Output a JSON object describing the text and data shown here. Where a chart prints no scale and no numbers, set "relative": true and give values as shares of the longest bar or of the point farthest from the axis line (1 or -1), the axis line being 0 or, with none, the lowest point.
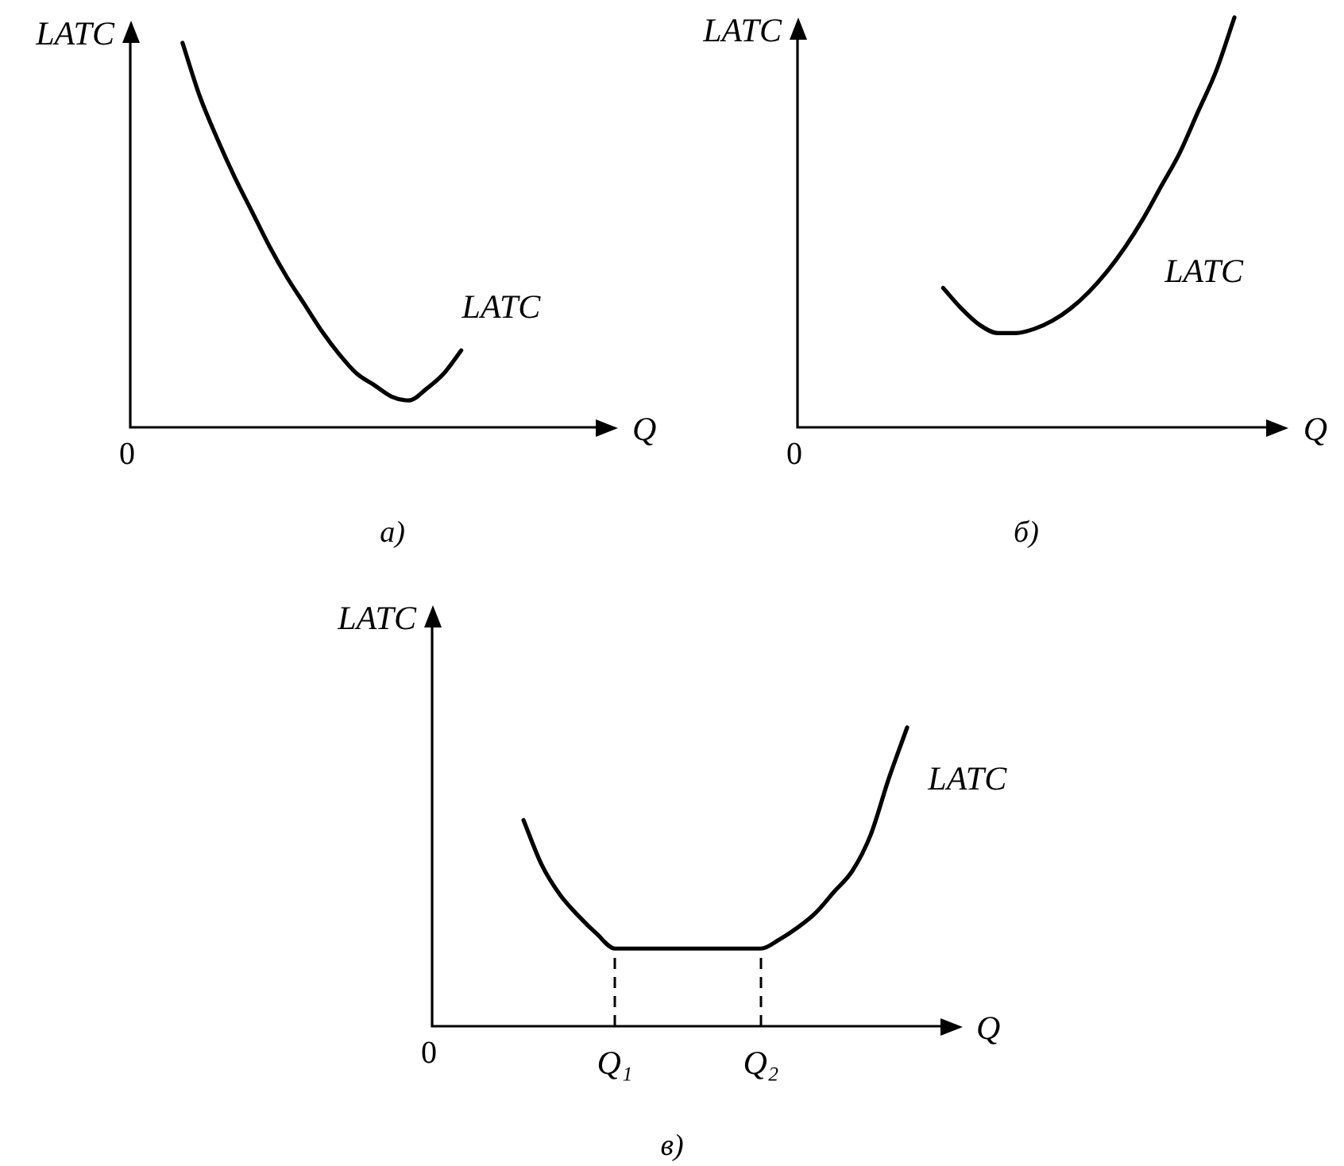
{
  "chart_data": [
    {
      "type": "line",
      "title": "а)",
      "xlabel": "Q",
      "ylabel": "LATC",
      "relative": true,
      "marker": "none",
      "categories": [
        null,
        null,
        null,
        null,
        null,
        null,
        null,
        null,
        null,
        null,
        null,
        null,
        null,
        null,
        null,
        null,
        null,
        null,
        null,
        null,
        null,
        null,
        null,
        null,
        null,
        null,
        null,
        null,
        null
      ],
      "series": [
        {
          "name": "LATC",
          "color": "#000000",
          "values": [
            null,
            null,
            null,
            1.0,
            0.86,
            0.75,
            0.65,
            0.56,
            0.47,
            0.39,
            0.32,
            0.25,
            0.19,
            0.14,
            0.11,
            0.08,
            0.07,
            0.1,
            0.14,
            0.2,
            null,
            null,
            null,
            null,
            null,
            null,
            null,
            null,
            null
          ]
        }
      ],
      "annotations": [
        "0"
      ]
    },
    {
      "type": "line",
      "title": "б)",
      "xlabel": "Q",
      "ylabel": "LATC",
      "relative": true,
      "marker": "none",
      "categories": [
        null,
        null,
        null,
        null,
        null,
        null,
        null,
        null,
        null,
        null,
        null,
        null,
        null,
        null,
        null,
        null,
        null,
        null,
        null,
        null,
        null,
        null,
        null,
        null,
        null,
        null,
        null,
        null
      ],
      "series": [
        {
          "name": "LATC",
          "color": "#000000",
          "values": [
            null,
            null,
            null,
            null,
            null,
            null,
            null,
            null,
            0.34,
            0.29,
            0.25,
            0.23,
            0.23,
            0.24,
            0.26,
            0.29,
            0.33,
            0.38,
            0.44,
            0.51,
            0.59,
            0.67,
            0.77,
            0.87,
            1.0,
            null,
            null,
            null
          ]
        }
      ],
      "annotations": [
        "0"
      ]
    },
    {
      "type": "line",
      "title": "в)",
      "xlabel": "Q",
      "ylabel": "LATC",
      "relative": true,
      "marker": "none",
      "tick_labels": "x",
      "categories": [
        null,
        null,
        null,
        null,
        null,
        null,
        null,
        null,
        null,
        null,
        "Q₁",
        null,
        null,
        null,
        null,
        null,
        null,
        null,
        "Q₂",
        null,
        null,
        null,
        null,
        null,
        null,
        null,
        null,
        null,
        null,
        null
      ],
      "series": [
        {
          "name": "LATC",
          "color": "#000000",
          "values": [
            null,
            null,
            null,
            null,
            null,
            0.69,
            0.54,
            0.44,
            0.37,
            0.31,
            0.26,
            0.26,
            0.26,
            0.26,
            0.26,
            0.26,
            0.26,
            0.26,
            0.26,
            0.29,
            0.33,
            0.38,
            0.45,
            0.52,
            0.64,
            0.83,
            1.0,
            null,
            null,
            null
          ]
        }
      ],
      "ref_lines": [
        {
          "axis": "x",
          "value": "Q₁",
          "line_style": "dashed"
        },
        {
          "axis": "x",
          "value": "Q₂",
          "line_style": "dashed"
        }
      ],
      "annotations": [
        "0"
      ]
    }
  ]
}
